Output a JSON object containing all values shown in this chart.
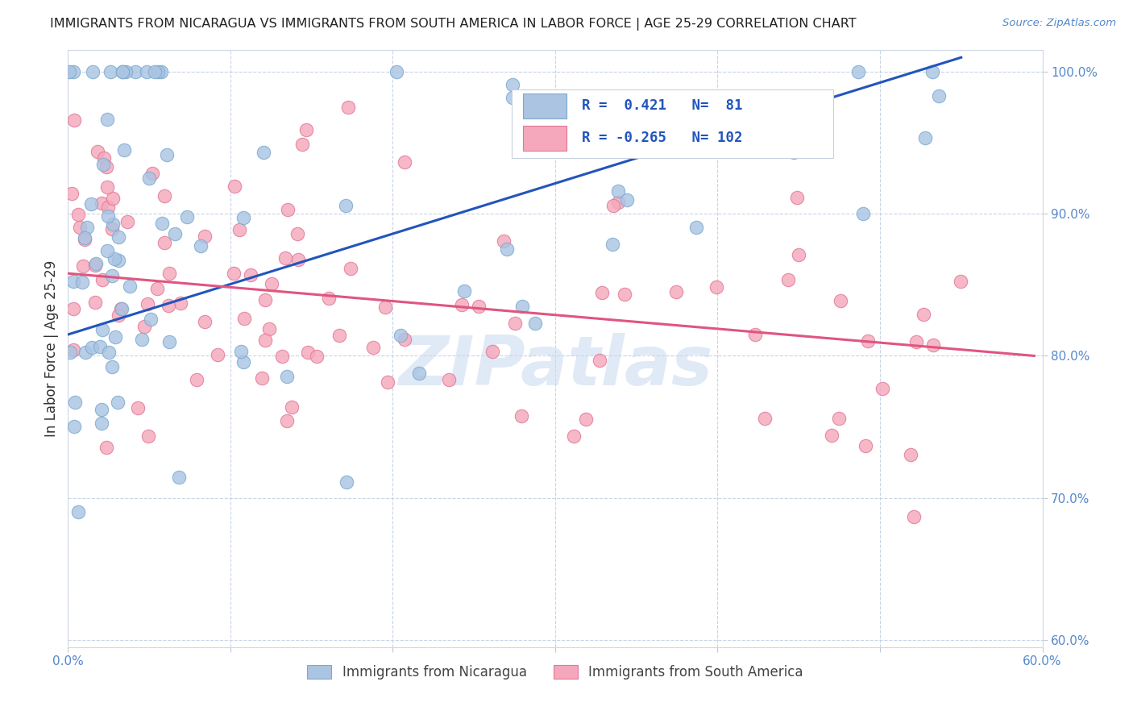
{
  "title": "IMMIGRANTS FROM NICARAGUA VS IMMIGRANTS FROM SOUTH AMERICA IN LABOR FORCE | AGE 25-29 CORRELATION CHART",
  "source": "Source: ZipAtlas.com",
  "ylabel": "In Labor Force | Age 25-29",
  "x_min": 0.0,
  "x_max": 0.6,
  "y_min": 0.595,
  "y_max": 1.015,
  "nicaragua_color": "#aac4e2",
  "nicaragua_edge_color": "#7aaad0",
  "south_america_color": "#f5a8bb",
  "south_america_edge_color": "#e07898",
  "line_nicaragua_color": "#2255bb",
  "line_south_america_color": "#e05580",
  "R_nicaragua": 0.421,
  "N_nicaragua": 81,
  "R_south_america": -0.265,
  "N_south_america": 102,
  "background_color": "#ffffff",
  "grid_color": "#c8d4e8",
  "watermark_text": "ZIPatlas",
  "watermark_color": "#c8d8f0",
  "watermark_alpha": 0.55,
  "tick_color": "#5588cc",
  "title_color": "#222222",
  "source_color": "#5588cc"
}
